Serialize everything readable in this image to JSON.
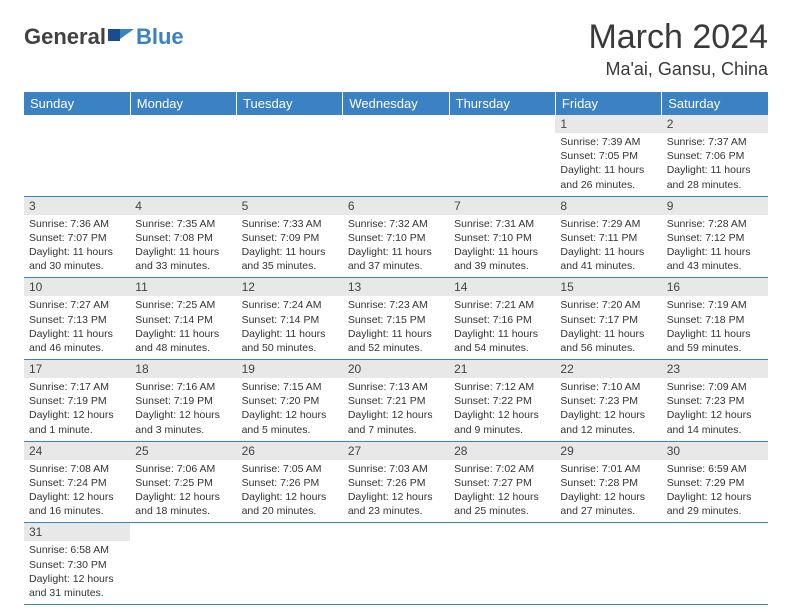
{
  "logo": {
    "general": "General",
    "blue": "Blue"
  },
  "title": "March 2024",
  "location": "Ma'ai, Gansu, China",
  "colors": {
    "header_bg": "#3b82c4",
    "header_text": "#ffffff",
    "daynum_bg": "#e8e8e8",
    "border": "#3b82c4"
  },
  "weekdays": [
    "Sunday",
    "Monday",
    "Tuesday",
    "Wednesday",
    "Thursday",
    "Friday",
    "Saturday"
  ],
  "weeks": [
    [
      null,
      null,
      null,
      null,
      null,
      {
        "n": "1",
        "sr": "Sunrise: 7:39 AM",
        "ss": "Sunset: 7:05 PM",
        "dl": "Daylight: 11 hours and 26 minutes."
      },
      {
        "n": "2",
        "sr": "Sunrise: 7:37 AM",
        "ss": "Sunset: 7:06 PM",
        "dl": "Daylight: 11 hours and 28 minutes."
      }
    ],
    [
      {
        "n": "3",
        "sr": "Sunrise: 7:36 AM",
        "ss": "Sunset: 7:07 PM",
        "dl": "Daylight: 11 hours and 30 minutes."
      },
      {
        "n": "4",
        "sr": "Sunrise: 7:35 AM",
        "ss": "Sunset: 7:08 PM",
        "dl": "Daylight: 11 hours and 33 minutes."
      },
      {
        "n": "5",
        "sr": "Sunrise: 7:33 AM",
        "ss": "Sunset: 7:09 PM",
        "dl": "Daylight: 11 hours and 35 minutes."
      },
      {
        "n": "6",
        "sr": "Sunrise: 7:32 AM",
        "ss": "Sunset: 7:10 PM",
        "dl": "Daylight: 11 hours and 37 minutes."
      },
      {
        "n": "7",
        "sr": "Sunrise: 7:31 AM",
        "ss": "Sunset: 7:10 PM",
        "dl": "Daylight: 11 hours and 39 minutes."
      },
      {
        "n": "8",
        "sr": "Sunrise: 7:29 AM",
        "ss": "Sunset: 7:11 PM",
        "dl": "Daylight: 11 hours and 41 minutes."
      },
      {
        "n": "9",
        "sr": "Sunrise: 7:28 AM",
        "ss": "Sunset: 7:12 PM",
        "dl": "Daylight: 11 hours and 43 minutes."
      }
    ],
    [
      {
        "n": "10",
        "sr": "Sunrise: 7:27 AM",
        "ss": "Sunset: 7:13 PM",
        "dl": "Daylight: 11 hours and 46 minutes."
      },
      {
        "n": "11",
        "sr": "Sunrise: 7:25 AM",
        "ss": "Sunset: 7:14 PM",
        "dl": "Daylight: 11 hours and 48 minutes."
      },
      {
        "n": "12",
        "sr": "Sunrise: 7:24 AM",
        "ss": "Sunset: 7:14 PM",
        "dl": "Daylight: 11 hours and 50 minutes."
      },
      {
        "n": "13",
        "sr": "Sunrise: 7:23 AM",
        "ss": "Sunset: 7:15 PM",
        "dl": "Daylight: 11 hours and 52 minutes."
      },
      {
        "n": "14",
        "sr": "Sunrise: 7:21 AM",
        "ss": "Sunset: 7:16 PM",
        "dl": "Daylight: 11 hours and 54 minutes."
      },
      {
        "n": "15",
        "sr": "Sunrise: 7:20 AM",
        "ss": "Sunset: 7:17 PM",
        "dl": "Daylight: 11 hours and 56 minutes."
      },
      {
        "n": "16",
        "sr": "Sunrise: 7:19 AM",
        "ss": "Sunset: 7:18 PM",
        "dl": "Daylight: 11 hours and 59 minutes."
      }
    ],
    [
      {
        "n": "17",
        "sr": "Sunrise: 7:17 AM",
        "ss": "Sunset: 7:19 PM",
        "dl": "Daylight: 12 hours and 1 minute."
      },
      {
        "n": "18",
        "sr": "Sunrise: 7:16 AM",
        "ss": "Sunset: 7:19 PM",
        "dl": "Daylight: 12 hours and 3 minutes."
      },
      {
        "n": "19",
        "sr": "Sunrise: 7:15 AM",
        "ss": "Sunset: 7:20 PM",
        "dl": "Daylight: 12 hours and 5 minutes."
      },
      {
        "n": "20",
        "sr": "Sunrise: 7:13 AM",
        "ss": "Sunset: 7:21 PM",
        "dl": "Daylight: 12 hours and 7 minutes."
      },
      {
        "n": "21",
        "sr": "Sunrise: 7:12 AM",
        "ss": "Sunset: 7:22 PM",
        "dl": "Daylight: 12 hours and 9 minutes."
      },
      {
        "n": "22",
        "sr": "Sunrise: 7:10 AM",
        "ss": "Sunset: 7:23 PM",
        "dl": "Daylight: 12 hours and 12 minutes."
      },
      {
        "n": "23",
        "sr": "Sunrise: 7:09 AM",
        "ss": "Sunset: 7:23 PM",
        "dl": "Daylight: 12 hours and 14 minutes."
      }
    ],
    [
      {
        "n": "24",
        "sr": "Sunrise: 7:08 AM",
        "ss": "Sunset: 7:24 PM",
        "dl": "Daylight: 12 hours and 16 minutes."
      },
      {
        "n": "25",
        "sr": "Sunrise: 7:06 AM",
        "ss": "Sunset: 7:25 PM",
        "dl": "Daylight: 12 hours and 18 minutes."
      },
      {
        "n": "26",
        "sr": "Sunrise: 7:05 AM",
        "ss": "Sunset: 7:26 PM",
        "dl": "Daylight: 12 hours and 20 minutes."
      },
      {
        "n": "27",
        "sr": "Sunrise: 7:03 AM",
        "ss": "Sunset: 7:26 PM",
        "dl": "Daylight: 12 hours and 23 minutes."
      },
      {
        "n": "28",
        "sr": "Sunrise: 7:02 AM",
        "ss": "Sunset: 7:27 PM",
        "dl": "Daylight: 12 hours and 25 minutes."
      },
      {
        "n": "29",
        "sr": "Sunrise: 7:01 AM",
        "ss": "Sunset: 7:28 PM",
        "dl": "Daylight: 12 hours and 27 minutes."
      },
      {
        "n": "30",
        "sr": "Sunrise: 6:59 AM",
        "ss": "Sunset: 7:29 PM",
        "dl": "Daylight: 12 hours and 29 minutes."
      }
    ],
    [
      {
        "n": "31",
        "sr": "Sunrise: 6:58 AM",
        "ss": "Sunset: 7:30 PM",
        "dl": "Daylight: 12 hours and 31 minutes."
      },
      null,
      null,
      null,
      null,
      null,
      null
    ]
  ]
}
